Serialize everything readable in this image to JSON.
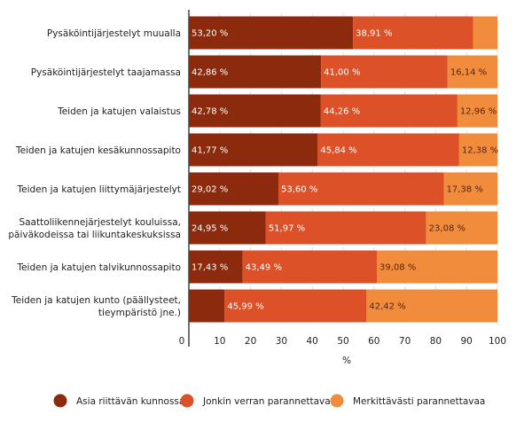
{
  "chart_data": {
    "type": "bar",
    "orientation": "horizontal",
    "stacked": true,
    "categories": [
      [
        "Pysäköintijärjestelyt muualla"
      ],
      [
        "Pysäköintijärjestelyt taajamassa"
      ],
      [
        "Teiden ja katujen valaistus"
      ],
      [
        "Teiden ja katujen kesäkunnossapito"
      ],
      [
        "Teiden ja katujen liittymäjärjestelyt"
      ],
      [
        "Saattoliikennejärjestelyt kouluissa,",
        "päiväkodeissa tai liikuntakeskuksissa"
      ],
      [
        "Teiden ja katujen talvikunnossapito"
      ],
      [
        "Teiden ja katujen kunto (päällysteet,",
        "tieympäristö jne.)"
      ]
    ],
    "series": [
      {
        "name": "Asia riittävän kunnossa",
        "color": "#8b2a0c",
        "values": [
          53.2,
          42.86,
          42.78,
          41.77,
          29.02,
          24.95,
          17.43,
          11.59
        ],
        "labels": [
          "53,20 %",
          "42,86 %",
          "42,78 %",
          "41,77 %",
          "29,02 %",
          "24,95 %",
          "17,43 %",
          ""
        ]
      },
      {
        "name": "Jonkin verran parannettavaa",
        "color": "#dc5128",
        "values": [
          38.91,
          41.0,
          44.26,
          45.84,
          53.6,
          51.97,
          43.49,
          45.99
        ],
        "labels": [
          "38,91 %",
          "41,00 %",
          "44,26 %",
          "45,84 %",
          "53,60 %",
          "51,97 %",
          "43,49 %",
          "45,99 %"
        ]
      },
      {
        "name": "Merkittävästi parannettavaa",
        "color": "#f08c3c",
        "values": [
          7.89,
          16.14,
          12.96,
          12.38,
          17.38,
          23.08,
          39.08,
          42.42
        ],
        "labels": [
          "",
          "16,14 %",
          "12,96 %",
          "12,38 %",
          "17,38 %",
          "23,08 %",
          "39,08 %",
          "42,42 %"
        ]
      }
    ],
    "xlim": [
      0,
      100
    ],
    "xticks": [
      "0",
      "10",
      "20",
      "30",
      "40",
      "50",
      "60",
      "70",
      "80",
      "90",
      "100"
    ],
    "xlabel": "%",
    "legend_position": "bottom",
    "grid": true
  }
}
